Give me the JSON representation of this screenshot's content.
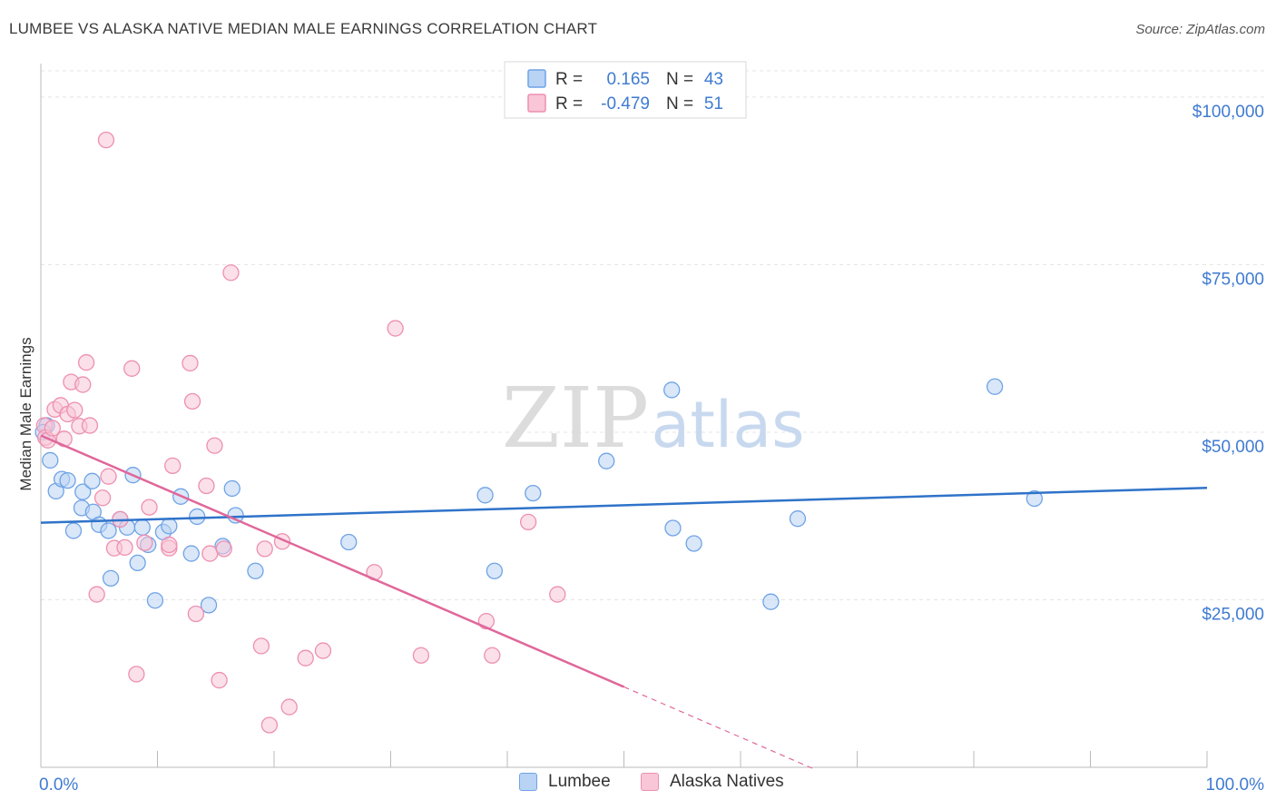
{
  "chart_data": {
    "type": "scatter",
    "title": "LUMBEE VS ALASKA NATIVE MEDIAN MALE EARNINGS CORRELATION CHART",
    "source": "Source: ZipAtlas.com",
    "ylabel": "Median Male Earnings",
    "xlabel": "",
    "xlim": [
      0,
      100
    ],
    "ylim": [
      0,
      105000
    ],
    "x_tick_labels": [
      "0.0%",
      "100.0%"
    ],
    "y_ticks": [
      25000,
      50000,
      75000,
      100000
    ],
    "y_tick_labels": [
      "$25,000",
      "$50,000",
      "$75,000",
      "$100,000"
    ],
    "grid": true,
    "watermark": {
      "zip": "ZIP",
      "atlas": "atlas"
    },
    "legend": {
      "r_label": "R =",
      "n_label": "N =",
      "rows": [
        {
          "series": "Lumbee",
          "r": "0.165",
          "n": "43"
        },
        {
          "series": "Alaska Natives",
          "r": "-0.479",
          "n": "51"
        }
      ]
    },
    "series": [
      {
        "name": "Lumbee",
        "color": "#6fa3e6",
        "fill": "#b9d3f4",
        "line_color": "#2f73c9",
        "trend": {
          "x": [
            0,
            100
          ],
          "y": [
            36500,
            41700
          ]
        },
        "points": [
          [
            0.5,
            51000
          ],
          [
            0.8,
            45800
          ],
          [
            1.3,
            41200
          ],
          [
            1.8,
            43000
          ],
          [
            2.3,
            42800
          ],
          [
            2.8,
            35300
          ],
          [
            3.5,
            38700
          ],
          [
            3.6,
            41100
          ],
          [
            4.4,
            42700
          ],
          [
            4.5,
            38100
          ],
          [
            5.0,
            36200
          ],
          [
            5.8,
            35300
          ],
          [
            6.0,
            28200
          ],
          [
            6.8,
            37000
          ],
          [
            7.4,
            35800
          ],
          [
            7.9,
            43600
          ],
          [
            8.3,
            30500
          ],
          [
            8.7,
            35800
          ],
          [
            9.2,
            33200
          ],
          [
            9.8,
            24900
          ],
          [
            10.5,
            35100
          ],
          [
            11.0,
            36000
          ],
          [
            12.0,
            40400
          ],
          [
            12.9,
            31900
          ],
          [
            13.4,
            37400
          ],
          [
            14.4,
            24200
          ],
          [
            15.6,
            33000
          ],
          [
            16.4,
            41600
          ],
          [
            16.7,
            37600
          ],
          [
            18.4,
            29300
          ],
          [
            26.4,
            33600
          ],
          [
            38.1,
            40600
          ],
          [
            38.9,
            29300
          ],
          [
            42.2,
            40900
          ],
          [
            48.5,
            45700
          ],
          [
            54.1,
            56300
          ],
          [
            54.2,
            35700
          ],
          [
            56.0,
            33400
          ],
          [
            62.6,
            24700
          ],
          [
            64.9,
            37100
          ],
          [
            81.8,
            56800
          ],
          [
            85.2,
            40100
          ],
          [
            0.2,
            50000
          ]
        ]
      },
      {
        "name": "Alaska Natives",
        "color": "#ee8fb0",
        "fill": "#f8c6d7",
        "line_color": "#e0679a",
        "trend": {
          "x": [
            0,
            50
          ],
          "y": [
            49500,
            12000
          ]
        },
        "trend_dashed": {
          "x": [
            50,
            66.5
          ],
          "y": [
            12000,
            -400
          ]
        },
        "points": [
          [
            0.3,
            51000
          ],
          [
            0.4,
            49200
          ],
          [
            1.2,
            53400
          ],
          [
            1.7,
            54000
          ],
          [
            2.0,
            49000
          ],
          [
            2.3,
            52700
          ],
          [
            2.6,
            57500
          ],
          [
            2.9,
            53300
          ],
          [
            3.3,
            50900
          ],
          [
            3.6,
            57100
          ],
          [
            3.9,
            60400
          ],
          [
            4.2,
            51000
          ],
          [
            4.8,
            25800
          ],
          [
            5.3,
            40200
          ],
          [
            5.8,
            43400
          ],
          [
            6.3,
            32700
          ],
          [
            6.8,
            37000
          ],
          [
            7.2,
            32800
          ],
          [
            5.6,
            93600
          ],
          [
            7.8,
            59500
          ],
          [
            8.2,
            13900
          ],
          [
            8.9,
            33500
          ],
          [
            9.3,
            38800
          ],
          [
            11.0,
            32700
          ],
          [
            11.0,
            33200
          ],
          [
            11.3,
            45000
          ],
          [
            12.8,
            60300
          ],
          [
            13.0,
            54600
          ],
          [
            13.3,
            22900
          ],
          [
            14.2,
            42000
          ],
          [
            14.5,
            31900
          ],
          [
            14.9,
            48000
          ],
          [
            15.3,
            13000
          ],
          [
            15.7,
            32600
          ],
          [
            16.3,
            73800
          ],
          [
            18.9,
            18100
          ],
          [
            19.2,
            32600
          ],
          [
            19.6,
            6300
          ],
          [
            20.7,
            33700
          ],
          [
            21.3,
            9000
          ],
          [
            22.7,
            16300
          ],
          [
            24.2,
            17400
          ],
          [
            28.6,
            29100
          ],
          [
            30.4,
            65500
          ],
          [
            32.6,
            16700
          ],
          [
            38.2,
            21800
          ],
          [
            38.7,
            16700
          ],
          [
            41.8,
            36600
          ],
          [
            44.3,
            25800
          ],
          [
            0.6,
            48800
          ],
          [
            1.0,
            50600
          ]
        ]
      }
    ]
  }
}
